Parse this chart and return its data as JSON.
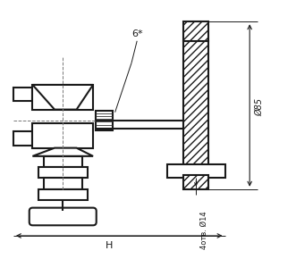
{
  "background": "#ffffff",
  "line_color": "#1a1a1a",
  "annotation_6star": "6*",
  "annotation_85": "Ø85",
  "annotation_holes": "4отв. Ø14",
  "annotation_H": "H",
  "figsize": [
    3.31,
    2.9
  ],
  "dpi": 100
}
